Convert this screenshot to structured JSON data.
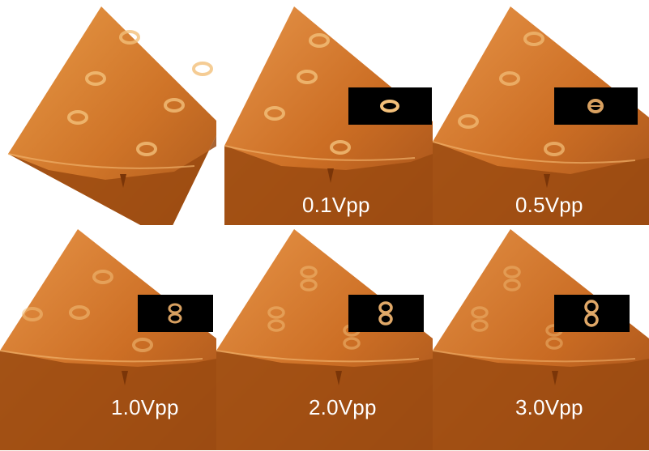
{
  "panels": [
    {
      "id": "p0",
      "label": "",
      "has_inset": false,
      "inset_pattern": "none"
    },
    {
      "id": "p1",
      "label": "0.1Vpp",
      "has_inset": true,
      "inset_pattern": "ring"
    },
    {
      "id": "p2",
      "label": "0.5Vpp",
      "has_inset": true,
      "inset_pattern": "ring-split"
    },
    {
      "id": "p3",
      "label": "1.0Vpp",
      "has_inset": true,
      "inset_pattern": "figure-eight"
    },
    {
      "id": "p4",
      "label": "2.0Vpp",
      "has_inset": true,
      "inset_pattern": "figure-eight"
    },
    {
      "id": "p5",
      "label": "3.0Vpp",
      "has_inset": true,
      "inset_pattern": "figure-eight"
    }
  ],
  "colors": {
    "surface_light": "#e58f3c",
    "surface_mid": "#c96a1d",
    "surface_dark": "#9a4a10",
    "edge_dark": "#7a3508",
    "feature": "#f3c07a",
    "inset_bg": "#000000",
    "label": "#ffffff"
  }
}
